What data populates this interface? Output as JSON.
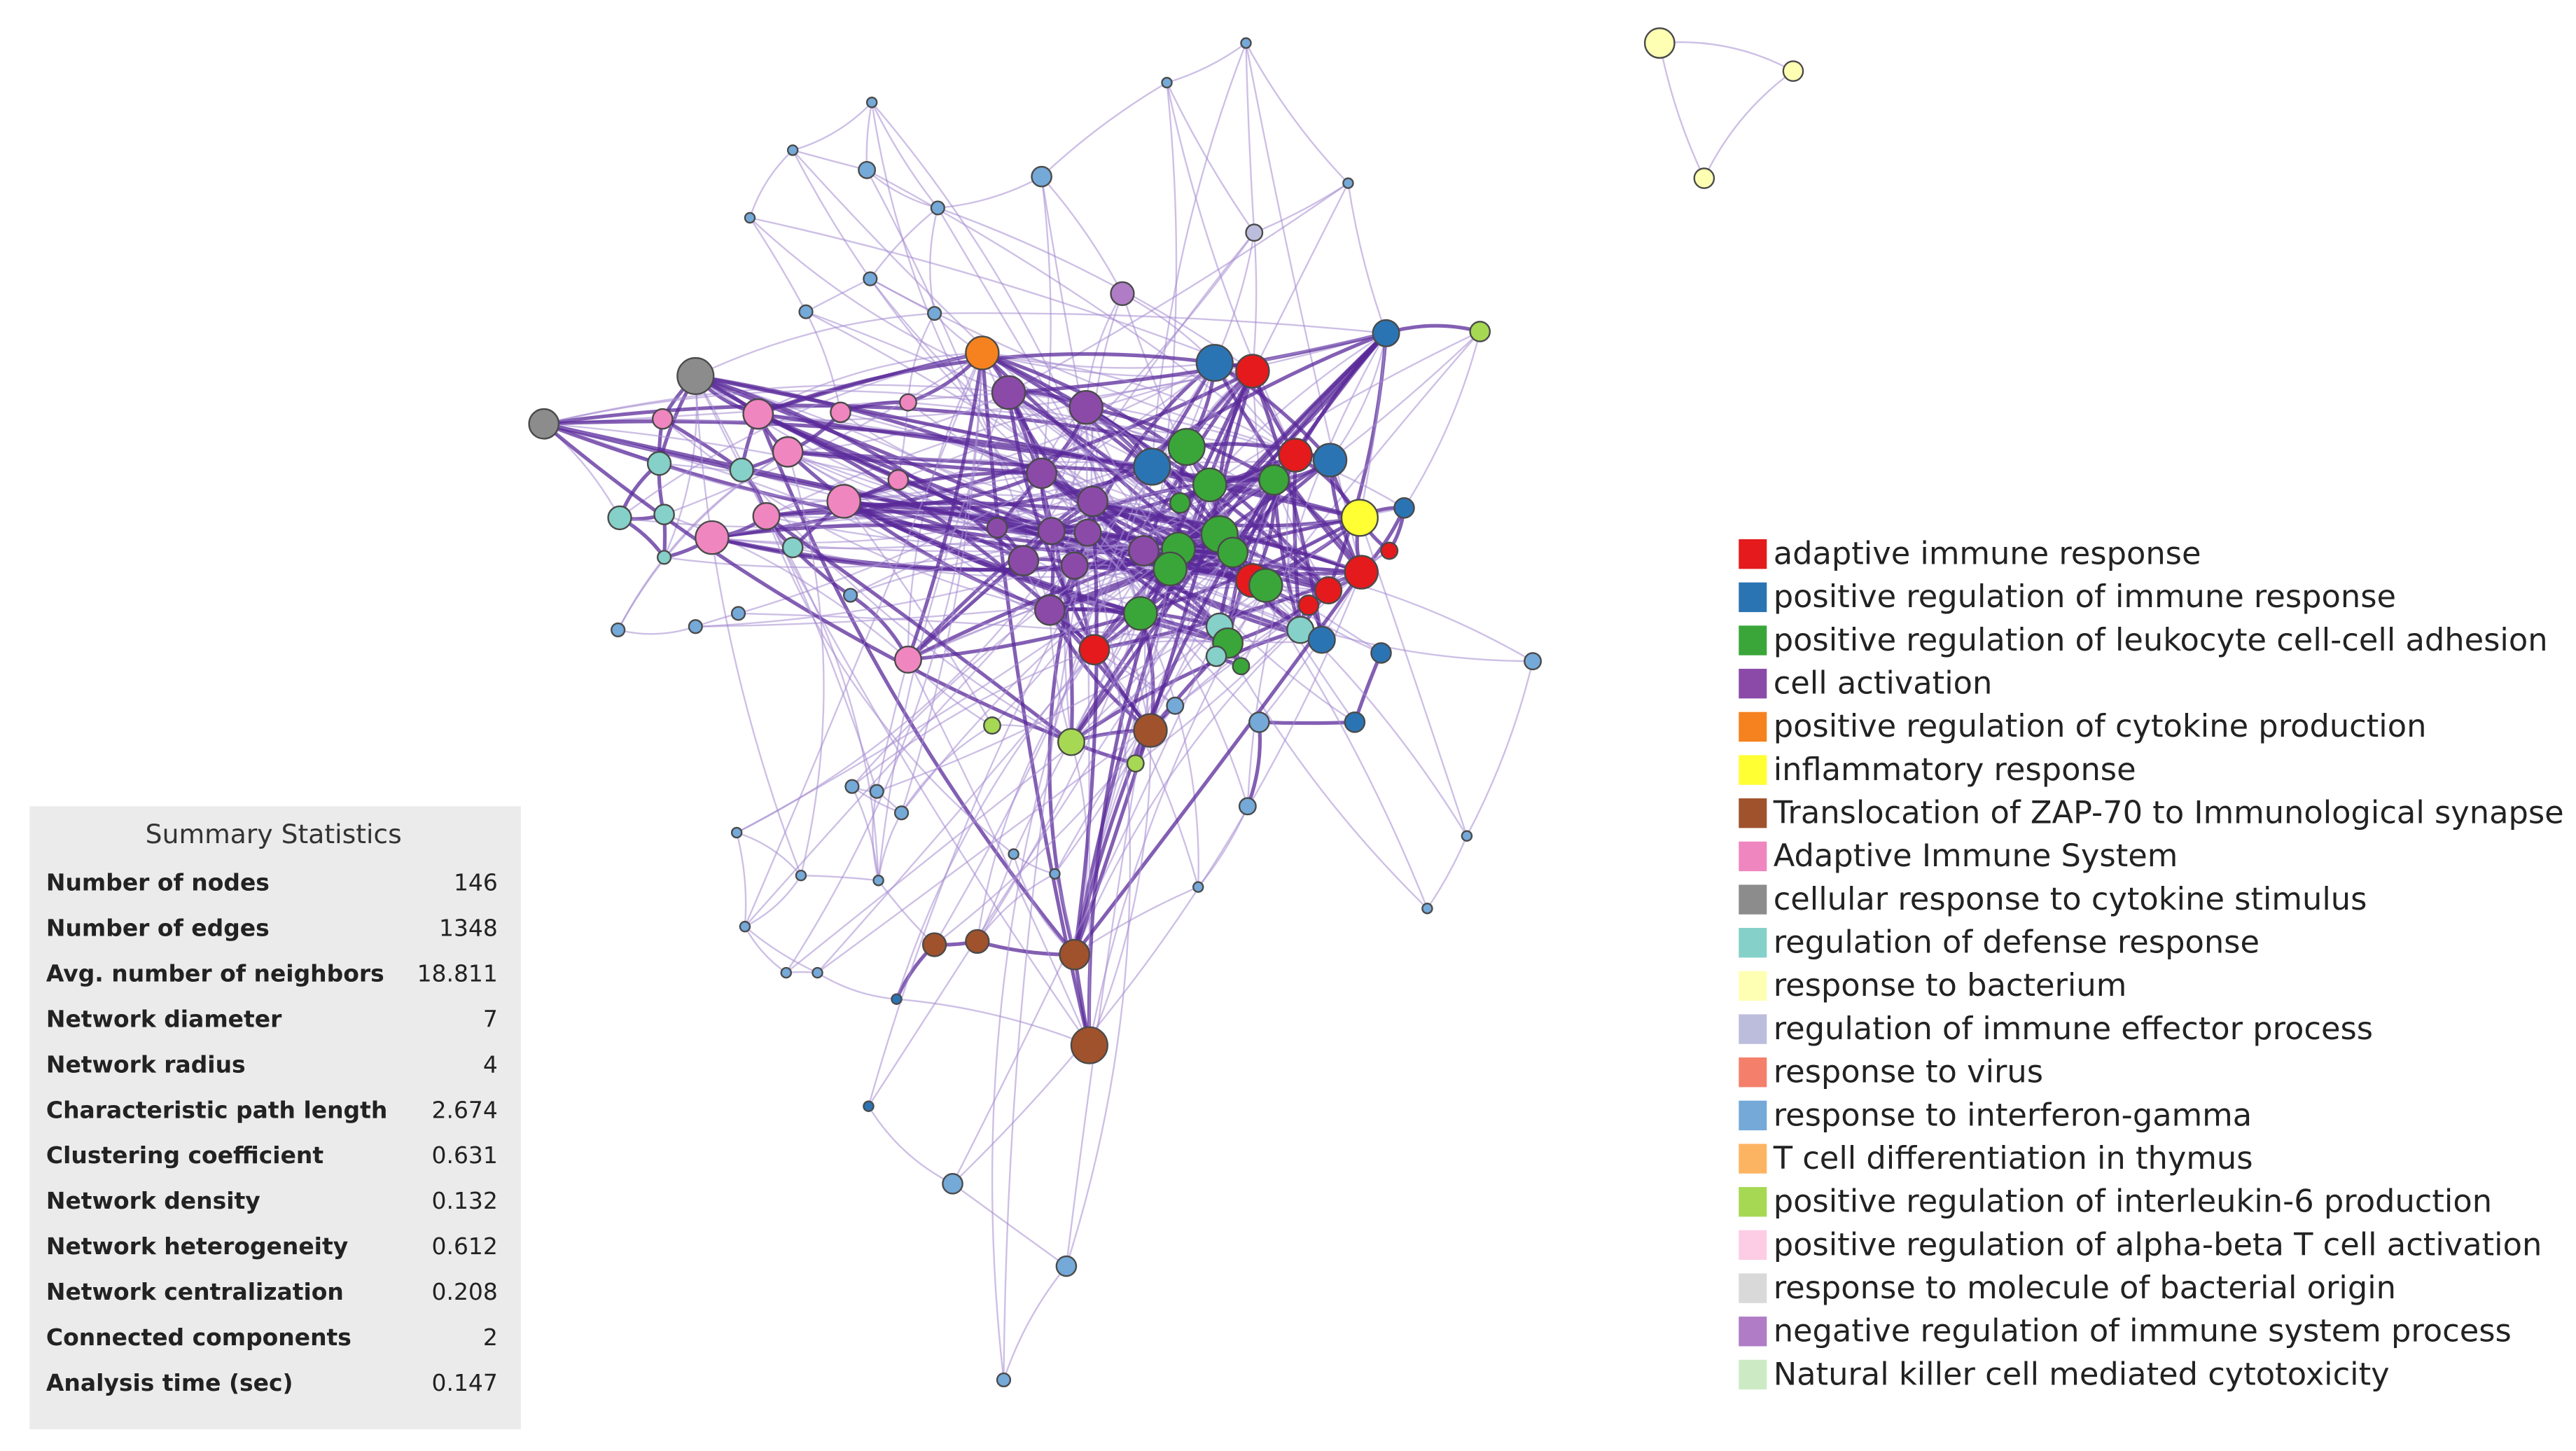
{
  "summary": {
    "title": "Summary Statistics",
    "rows": [
      {
        "label": "Number of nodes",
        "value": 146
      },
      {
        "label": "Number of edges",
        "value": 1348
      },
      {
        "label": "Avg. number of neighbors",
        "value": 18.811
      },
      {
        "label": "Network diameter",
        "value": 7
      },
      {
        "label": "Network radius",
        "value": 4
      },
      {
        "label": "Characteristic path length",
        "value": 2.674
      },
      {
        "label": "Clustering coefficient",
        "value": 0.631
      },
      {
        "label": "Network density",
        "value": 0.132
      },
      {
        "label": "Network heterogeneity",
        "value": 0.612
      },
      {
        "label": "Network centralization",
        "value": 0.208
      },
      {
        "label": "Connected components",
        "value": 2
      },
      {
        "label": "Analysis time (sec)",
        "value": 0.147
      }
    ]
  },
  "legend": [
    {
      "label": "adaptive immune response",
      "color": "#e41a1c"
    },
    {
      "label": "positive regulation of immune response",
      "color": "#2b74b4"
    },
    {
      "label": "positive regulation of leukocyte cell-cell adhesion",
      "color": "#3aa63a"
    },
    {
      "label": "cell activation",
      "color": "#8b4aa8"
    },
    {
      "label": "positive regulation of cytokine production",
      "color": "#f5821f"
    },
    {
      "label": "inflammatory response",
      "color": "#ffff33"
    },
    {
      "label": "Translocation of ZAP-70 to Immunological synapse",
      "color": "#a0522d"
    },
    {
      "label": "Adaptive Immune System",
      "color": "#ef86c0"
    },
    {
      "label": "cellular response to cytokine stimulus",
      "color": "#8c8c8c"
    },
    {
      "label": "regulation of defense response",
      "color": "#85d0c8"
    },
    {
      "label": "response to bacterium",
      "color": "#ffffb3"
    },
    {
      "label": "regulation of immune effector process",
      "color": "#bcbddc"
    },
    {
      "label": "response to virus",
      "color": "#f4806c"
    },
    {
      "label": "response to interferon-gamma",
      "color": "#74a9d8"
    },
    {
      "label": "T cell differentiation in thymus",
      "color": "#fdb462"
    },
    {
      "label": "positive regulation of interleukin-6 production",
      "color": "#a6d854"
    },
    {
      "label": "positive regulation of alpha-beta T cell activation",
      "color": "#fccde5"
    },
    {
      "label": "response to molecule of bacterial origin",
      "color": "#d9d9d9"
    },
    {
      "label": "negative regulation of immune system process",
      "color": "#b07cc6"
    },
    {
      "label": "Natural killer cell mediated cytotoxicity",
      "color": "#ccebc5"
    }
  ]
}
